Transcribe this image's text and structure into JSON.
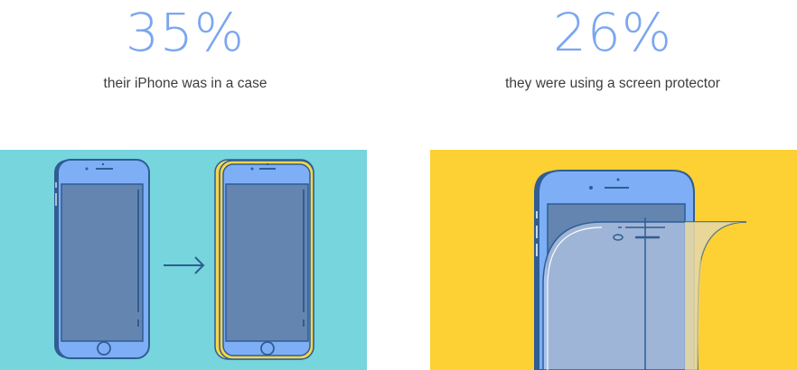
{
  "stats": [
    {
      "value": "35%",
      "caption": "their iPhone was in a case"
    },
    {
      "value": "26%",
      "caption": "they were using a screen protector"
    }
  ],
  "colors": {
    "accent": "#7ba6ef",
    "panel_left": "#76d5dd",
    "panel_right": "#fdd034",
    "phone_body": "#7eaef5",
    "phone_screen": "#6485b0",
    "outline": "#2f5d94",
    "case": "#f7d64a"
  },
  "illustrations": {
    "left": [
      "phone-icon",
      "arrow-right-icon",
      "phone-in-case-icon"
    ],
    "right": [
      "phone-with-screen-protector-icon"
    ]
  }
}
